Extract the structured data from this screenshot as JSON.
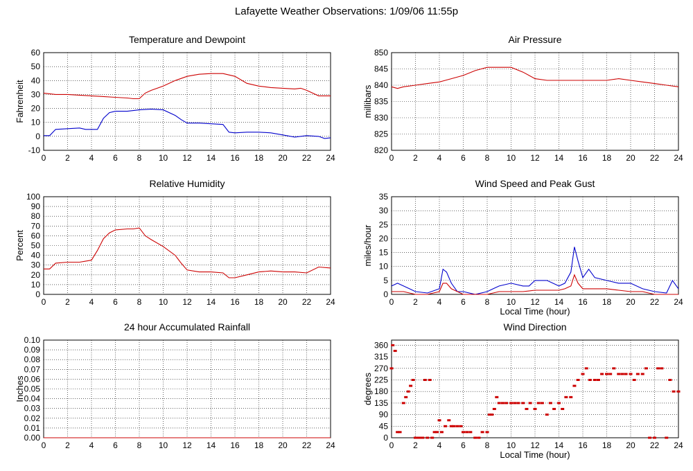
{
  "page_title": "Lafayette Weather Observations: 1/09/06 11:55p",
  "colors": {
    "red": "#cc0000",
    "blue": "#0000cc",
    "grid": "#000000",
    "axis": "#000000"
  },
  "chart_data": [
    {
      "id": "temperature",
      "type": "line",
      "title": "Temperature and Dewpoint",
      "xlabel": "",
      "ylabel": "Fahrenheit",
      "xlim": [
        0,
        24
      ],
      "ylim": [
        -10,
        60
      ],
      "xticks": [
        0,
        2,
        4,
        6,
        8,
        10,
        12,
        14,
        16,
        18,
        20,
        22,
        24
      ],
      "yticks": [
        -10,
        0,
        10,
        20,
        30,
        40,
        50,
        60
      ],
      "grid": true,
      "series": [
        {
          "color": "#cc0000",
          "x": [
            0,
            1,
            2,
            3,
            4,
            5,
            6,
            7,
            7.5,
            8,
            8.5,
            9,
            10,
            11,
            12,
            13,
            14,
            15,
            16,
            17,
            18,
            19,
            20,
            21,
            21.5,
            22,
            23,
            24
          ],
          "values": [
            31,
            30,
            30,
            29.5,
            29,
            28.5,
            28,
            27.5,
            27,
            27,
            31,
            33,
            36,
            40,
            43,
            44.5,
            45,
            45,
            43,
            38,
            36,
            35,
            34.5,
            34,
            34.5,
            33,
            29,
            29
          ]
        },
        {
          "color": "#0000cc",
          "x": [
            0,
            0.5,
            1,
            2,
            3,
            3.5,
            4,
            4.5,
            5,
            5.5,
            6,
            7,
            8,
            9,
            10,
            11,
            11.5,
            12,
            13,
            14,
            15,
            15.5,
            16,
            17,
            18,
            19,
            20,
            21,
            22,
            23,
            23.5,
            24
          ],
          "values": [
            0.5,
            0.5,
            5,
            5.5,
            6,
            5,
            5,
            5,
            13,
            17,
            18,
            18,
            19,
            19.5,
            19,
            15,
            12,
            9.5,
            9.5,
            9,
            8.5,
            3,
            2.5,
            3,
            3,
            2.5,
            1,
            -0.5,
            0.5,
            0,
            -1.5,
            -1
          ]
        }
      ]
    },
    {
      "id": "pressure",
      "type": "line",
      "title": "Air Pressure",
      "xlabel": "",
      "ylabel": "millibars",
      "xlim": [
        0,
        24
      ],
      "ylim": [
        820,
        850
      ],
      "xticks": [
        0,
        2,
        4,
        6,
        8,
        10,
        12,
        14,
        16,
        18,
        20,
        22,
        24
      ],
      "yticks": [
        820,
        825,
        830,
        835,
        840,
        845,
        850
      ],
      "grid": true,
      "series": [
        {
          "color": "#cc0000",
          "x": [
            0,
            0.5,
            1,
            2,
            3,
            4,
            5,
            6,
            7,
            8,
            9,
            10,
            11,
            12,
            13,
            14,
            15,
            16,
            17,
            18,
            19,
            20,
            21,
            22,
            23,
            24
          ],
          "values": [
            839.5,
            839,
            839.5,
            840,
            840.5,
            841,
            842,
            843,
            844.5,
            845.5,
            845.5,
            845.5,
            844,
            842,
            841.5,
            841.5,
            841.5,
            841.5,
            841.5,
            841.5,
            842,
            841.5,
            841,
            840.5,
            840,
            839.5
          ]
        }
      ]
    },
    {
      "id": "humidity",
      "type": "line",
      "title": "Relative Humidity",
      "xlabel": "",
      "ylabel": "Percent",
      "xlim": [
        0,
        24
      ],
      "ylim": [
        0,
        100
      ],
      "xticks": [
        0,
        2,
        4,
        6,
        8,
        10,
        12,
        14,
        16,
        18,
        20,
        22,
        24
      ],
      "yticks": [
        0,
        10,
        20,
        30,
        40,
        50,
        60,
        70,
        80,
        90,
        100
      ],
      "grid": true,
      "series": [
        {
          "color": "#cc0000",
          "x": [
            0,
            0.5,
            1,
            2,
            3,
            3.5,
            4,
            4.5,
            5,
            5.5,
            6,
            7,
            7.5,
            8,
            8.5,
            9,
            10,
            11,
            11.5,
            12,
            13,
            14,
            15,
            15.5,
            16,
            17,
            18,
            19,
            20,
            21,
            22,
            23,
            24
          ],
          "values": [
            26,
            26,
            32,
            33,
            33,
            34,
            35,
            45,
            57,
            63,
            66,
            67,
            67,
            68,
            60,
            56,
            49,
            40,
            32,
            25,
            23,
            23,
            22,
            17,
            17,
            20,
            23,
            24,
            23,
            23,
            22,
            28,
            27
          ]
        }
      ]
    },
    {
      "id": "wind-speed",
      "type": "line",
      "title": "Wind Speed and Peak Gust",
      "xlabel": "Local Time (hour)",
      "ylabel": "miles/hour",
      "xlim": [
        0,
        24
      ],
      "ylim": [
        0,
        35
      ],
      "xticks": [
        0,
        2,
        4,
        6,
        8,
        10,
        12,
        14,
        16,
        18,
        20,
        22,
        24
      ],
      "yticks": [
        0,
        5,
        10,
        15,
        20,
        25,
        30,
        35
      ],
      "grid": true,
      "series": [
        {
          "color": "#0000cc",
          "x": [
            0,
            0.5,
            1,
            1.5,
            2,
            3,
            4,
            4.3,
            4.6,
            5,
            5.5,
            6,
            7,
            8,
            8.5,
            9,
            10,
            11,
            11.5,
            12,
            13,
            14,
            14.5,
            15,
            15.3,
            15.6,
            16,
            16.5,
            17,
            18,
            19,
            20,
            21,
            22,
            23,
            23.5,
            24
          ],
          "values": [
            3,
            4,
            3,
            2,
            1,
            0.5,
            2,
            9,
            8,
            4,
            1,
            1,
            0,
            1,
            2,
            3,
            4,
            3,
            3,
            5,
            5,
            3,
            4,
            8,
            17,
            12,
            6,
            9,
            6,
            5,
            4,
            4,
            2,
            1,
            0.5,
            5,
            2
          ]
        },
        {
          "color": "#cc0000",
          "x": [
            0,
            1,
            2,
            3,
            4,
            4.3,
            4.6,
            5,
            6,
            7,
            8,
            9,
            10,
            11,
            12,
            13,
            14,
            14.5,
            15,
            15.3,
            15.6,
            16,
            17,
            18,
            19,
            20,
            21,
            22,
            23,
            24
          ],
          "values": [
            1,
            1,
            0,
            0,
            1,
            4,
            4,
            2,
            0,
            0,
            0,
            1,
            1,
            1,
            1.5,
            1.5,
            1.5,
            2,
            3,
            7,
            4,
            2,
            2,
            2,
            1.5,
            1,
            1,
            0,
            0,
            0
          ]
        }
      ]
    },
    {
      "id": "rainfall",
      "type": "line",
      "title": "24 hour Accumulated Rainfall",
      "xlabel": "",
      "ylabel": "Inches",
      "xlim": [
        0,
        24
      ],
      "ylim": [
        0,
        0.1
      ],
      "xticks": [
        0,
        2,
        4,
        6,
        8,
        10,
        12,
        14,
        16,
        18,
        20,
        22,
        24
      ],
      "yticks": [
        "0.00",
        "0.01",
        "0.02",
        "0.03",
        "0.04",
        "0.05",
        "0.06",
        "0.07",
        "0.08",
        "0.09",
        "0.10"
      ],
      "grid": true,
      "series": [
        {
          "color": "#cc0000",
          "x": [
            0,
            24
          ],
          "values": [
            0,
            0
          ]
        }
      ]
    },
    {
      "id": "wind-direction",
      "type": "scatter",
      "title": "Wind Direction",
      "xlabel": "Local Time (hour)",
      "ylabel": "degrees",
      "xlim": [
        0,
        24
      ],
      "ylim": [
        0,
        380
      ],
      "xticks": [
        0,
        2,
        4,
        6,
        8,
        10,
        12,
        14,
        16,
        18,
        20,
        22,
        24
      ],
      "yticks": [
        0,
        45,
        90,
        135,
        180,
        225,
        270,
        315,
        360
      ],
      "grid": true,
      "series": [
        {
          "color": "#cc0000",
          "x": [
            0,
            0.1,
            0.3,
            0.5,
            0.7,
            1.0,
            1.2,
            1.4,
            1.6,
            1.8,
            2.0,
            2.2,
            2.4,
            2.6,
            2.8,
            3.0,
            3.2,
            3.4,
            3.6,
            3.8,
            4.0,
            4.2,
            4.5,
            4.8,
            5.0,
            5.2,
            5.5,
            5.8,
            6.0,
            6.3,
            6.6,
            7.0,
            7.3,
            7.6,
            8.0,
            8.2,
            8.4,
            8.6,
            8.8,
            9.0,
            9.3,
            9.6,
            10.0,
            10.3,
            10.6,
            11.0,
            11.3,
            11.6,
            12.0,
            12.3,
            12.6,
            13.0,
            13.3,
            13.6,
            14.0,
            14.3,
            14.6,
            15.0,
            15.3,
            15.6,
            16.0,
            16.3,
            16.6,
            17.0,
            17.3,
            17.6,
            18.0,
            18.3,
            18.6,
            19.0,
            19.3,
            19.6,
            20.0,
            20.3,
            20.6,
            21.0,
            21.3,
            21.6,
            22.0,
            22.3,
            22.6,
            23.0,
            23.3,
            23.6,
            24.0
          ],
          "values": [
            270,
            360,
            338,
            22,
            22,
            135,
            158,
            180,
            202,
            225,
            0,
            0,
            0,
            0,
            225,
            0,
            225,
            0,
            22,
            22,
            68,
            22,
            45,
            68,
            45,
            45,
            45,
            45,
            22,
            22,
            22,
            0,
            0,
            22,
            22,
            90,
            90,
            112,
            158,
            135,
            135,
            135,
            135,
            135,
            135,
            135,
            112,
            135,
            112,
            135,
            135,
            90,
            135,
            112,
            135,
            112,
            158,
            158,
            202,
            225,
            248,
            270,
            225,
            225,
            225,
            248,
            248,
            248,
            270,
            248,
            248,
            248,
            248,
            225,
            248,
            248,
            270,
            0,
            0,
            270,
            270,
            0,
            225,
            180,
            180
          ]
        }
      ]
    }
  ]
}
